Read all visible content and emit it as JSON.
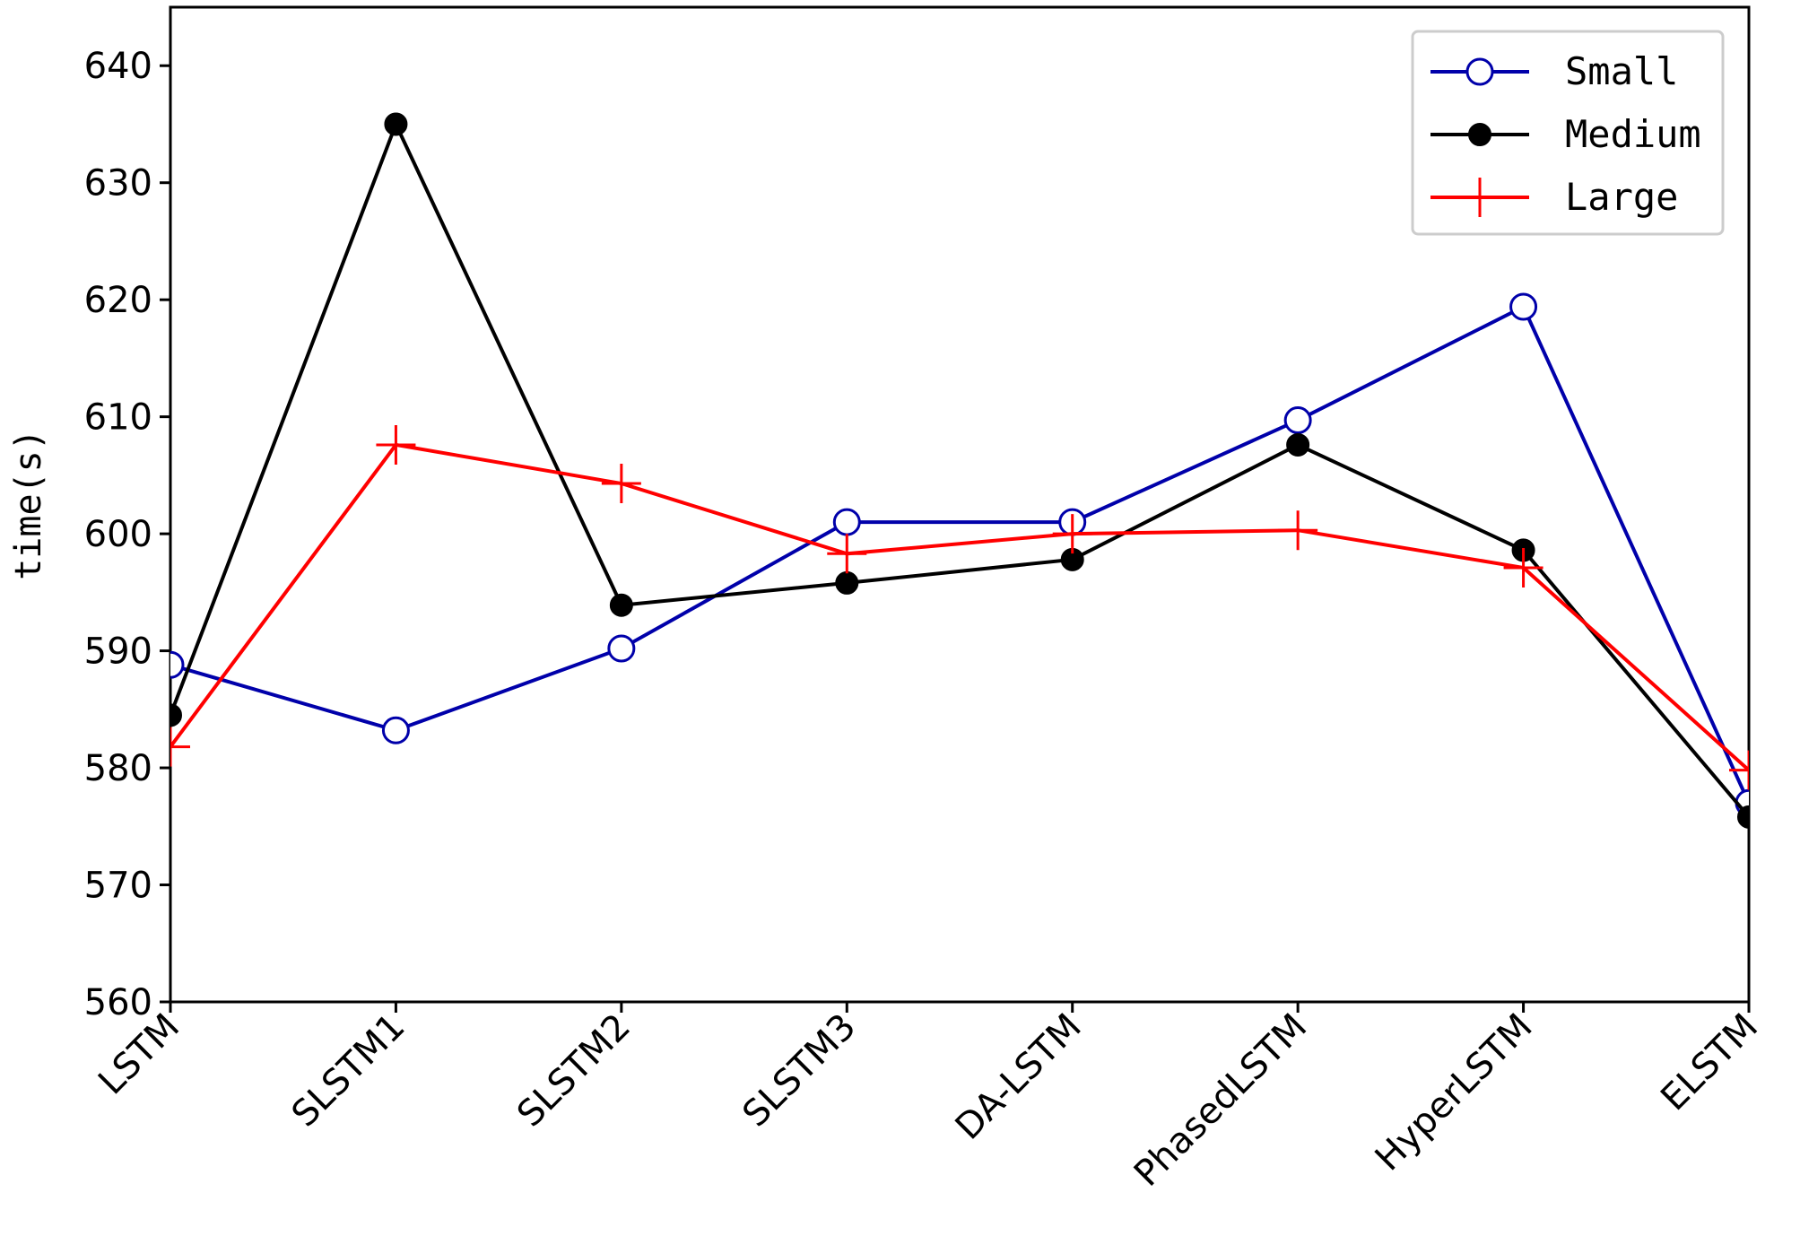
{
  "chart_data": {
    "type": "line",
    "title": "",
    "xlabel": "",
    "ylabel": "time(s)",
    "ylim": [
      560,
      645
    ],
    "yticks": [
      560,
      570,
      580,
      590,
      600,
      610,
      620,
      630,
      640
    ],
    "grid": false,
    "legend": "top-right",
    "categories": [
      "LSTM",
      "SLSTM1",
      "SLSTM2",
      "SLSTM3",
      "DA-LSTM",
      "PhasedLSTM",
      "HyperLSTM",
      "ELSTM"
    ],
    "series": [
      {
        "name": "Small",
        "color": "#0000aa",
        "marker": "open-circle",
        "values": [
          588.8,
          583.2,
          590.2,
          601.0,
          601.0,
          609.7,
          619.4,
          577.0
        ]
      },
      {
        "name": "Medium",
        "color": "#000000",
        "marker": "filled-circle",
        "values": [
          584.5,
          635.0,
          593.9,
          595.8,
          597.8,
          607.6,
          598.6,
          575.8
        ]
      },
      {
        "name": "Large",
        "color": "#ff0000",
        "marker": "plus",
        "values": [
          581.8,
          607.6,
          604.3,
          598.3,
          600.0,
          600.3,
          597.1,
          579.8
        ]
      }
    ]
  }
}
